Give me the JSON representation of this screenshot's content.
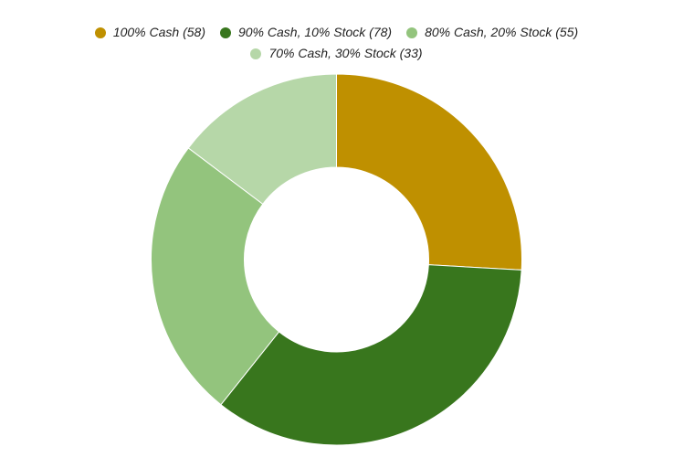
{
  "chart_data": {
    "type": "pie",
    "variant": "donut",
    "legend_position": "top",
    "slices": [
      {
        "label": "100% Cash (58)",
        "value": 58,
        "color": "#bf9000"
      },
      {
        "label": "90% Cash, 10% Stock (78)",
        "value": 78,
        "color": "#38761d"
      },
      {
        "label": "80% Cash, 20% Stock (55)",
        "value": 55,
        "color": "#93c47d"
      },
      {
        "label": "70% Cash, 30% Stock (33)",
        "value": 33,
        "color": "#b6d7a8"
      }
    ]
  }
}
